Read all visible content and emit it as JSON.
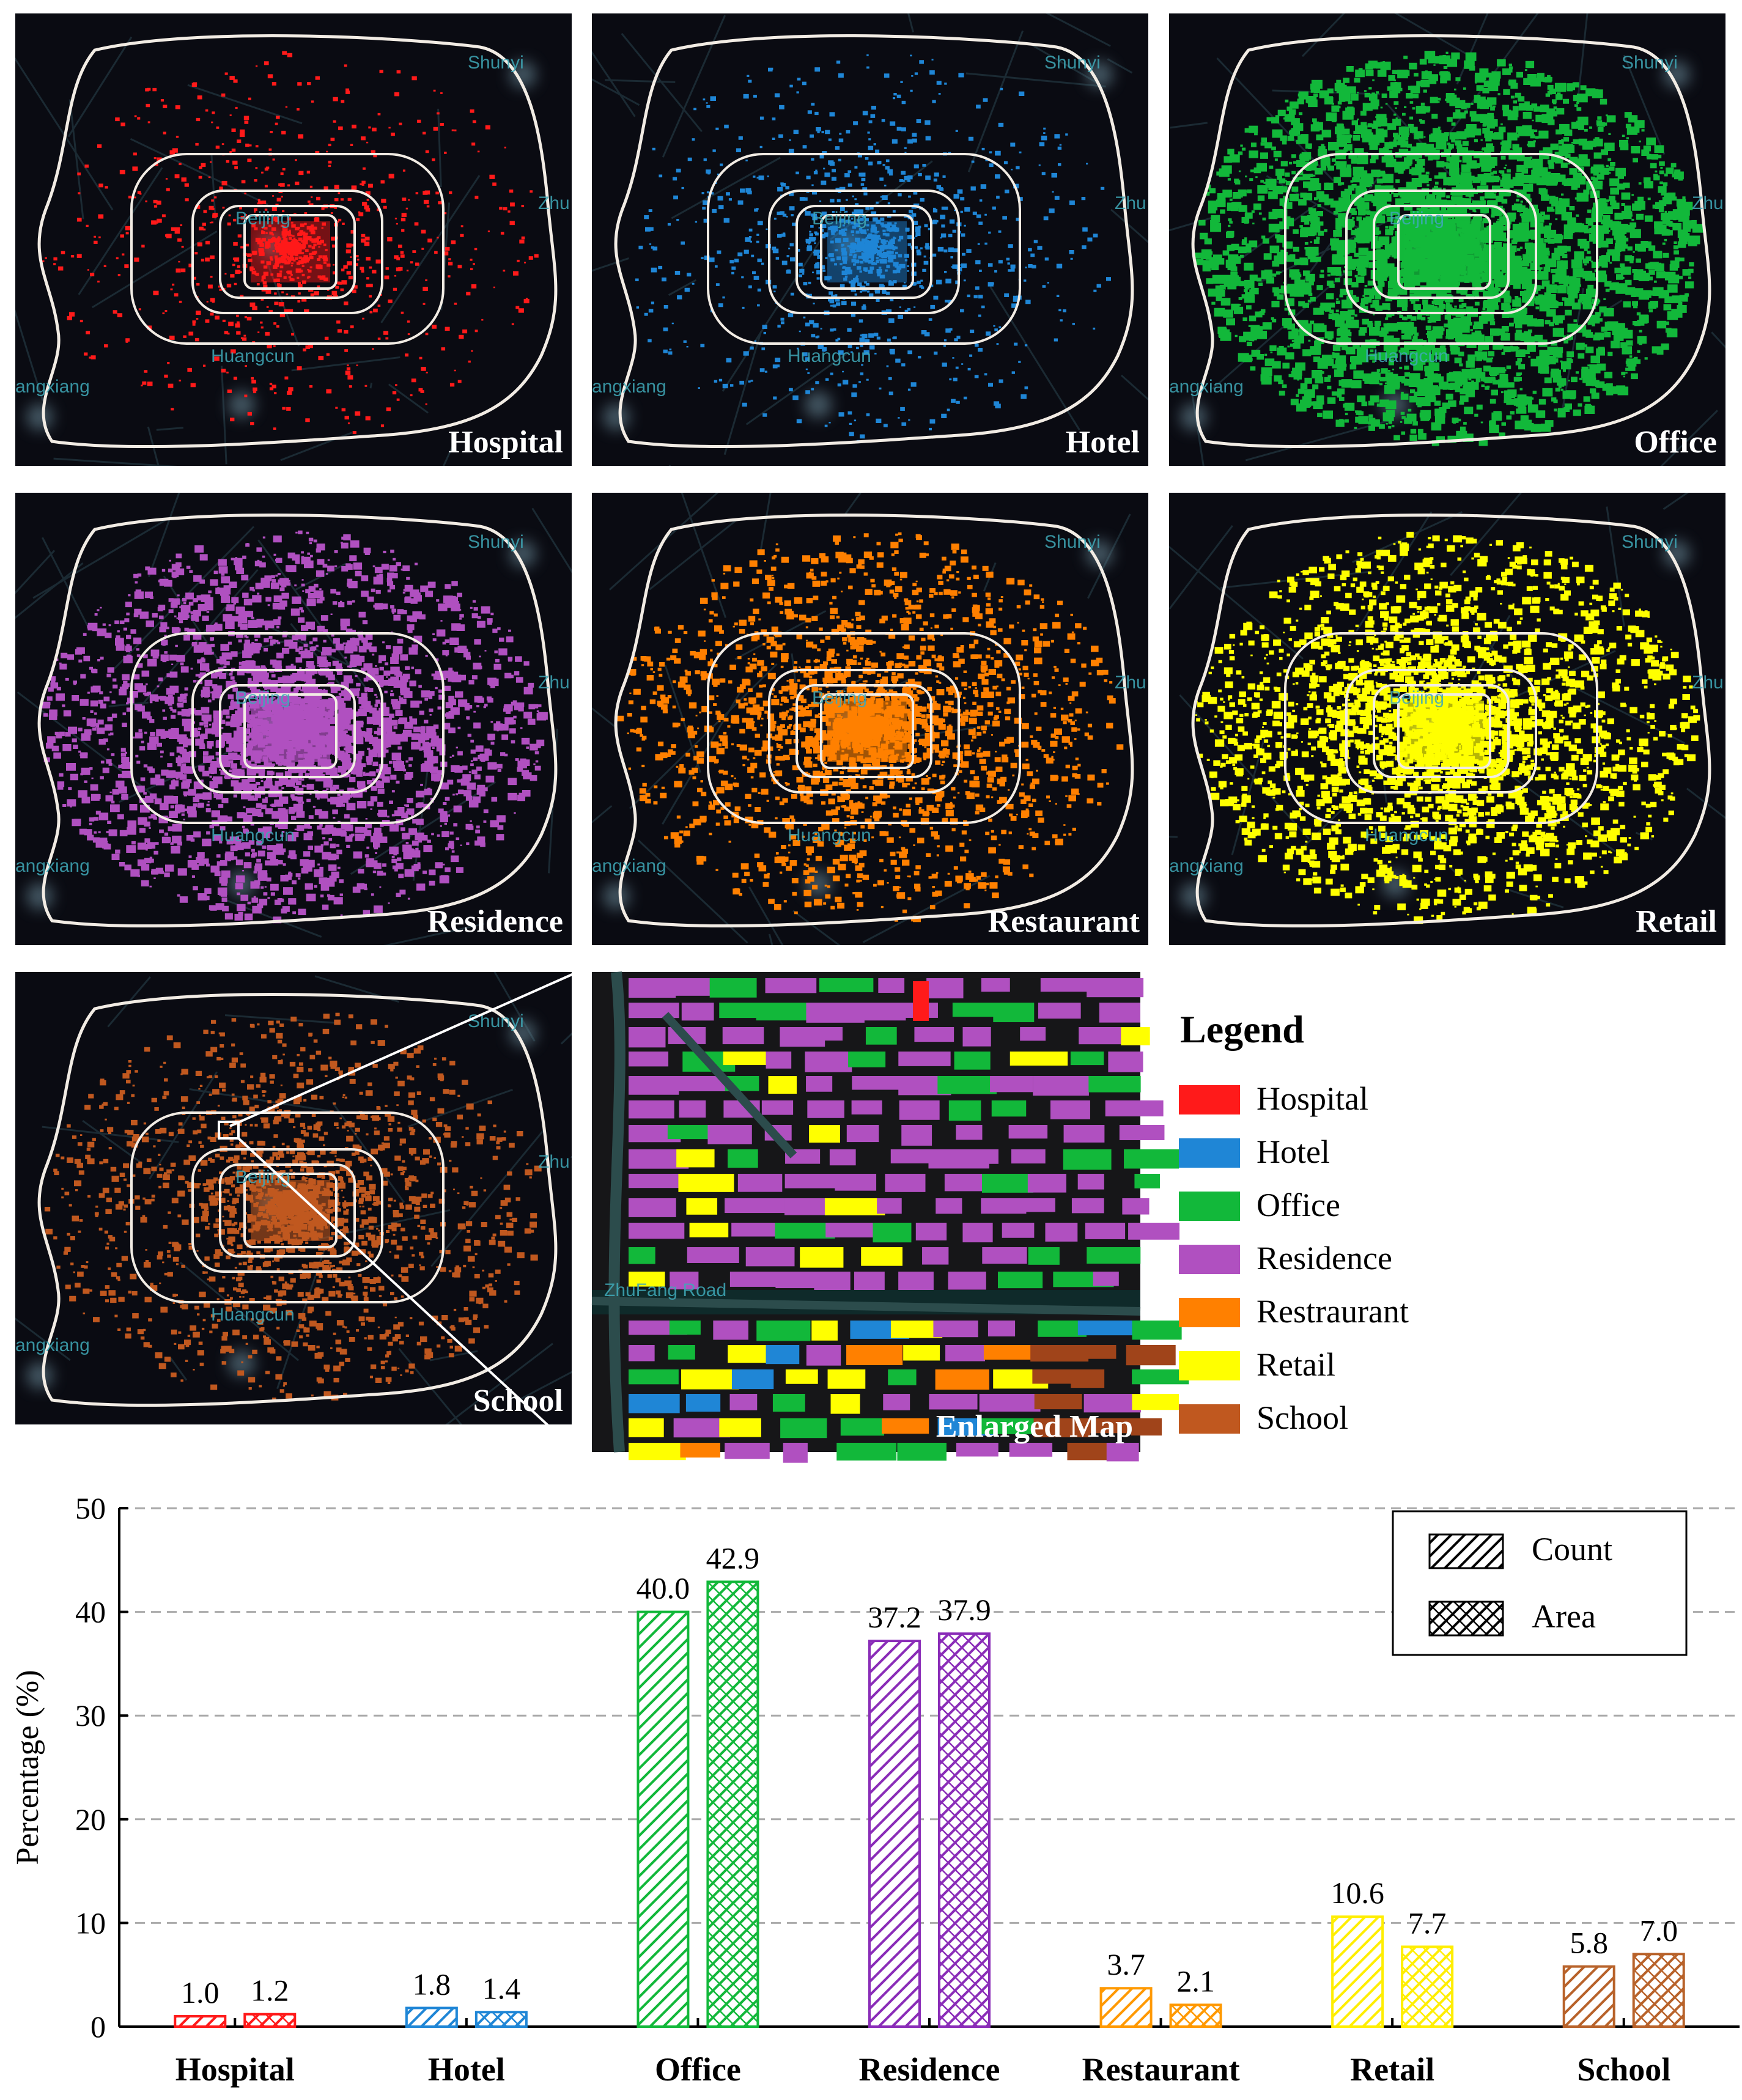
{
  "maps": {
    "places": [
      "Shunyi",
      "Beijing",
      "Zhu",
      "Huangcun",
      "angxiang"
    ],
    "panels": [
      {
        "label": "Hospital",
        "color": "#ff1a1a",
        "density": 0.18
      },
      {
        "label": "Hotel",
        "color": "#1f86d6",
        "density": 0.22
      },
      {
        "label": "Office",
        "color": "#12b83a",
        "density": 0.95
      },
      {
        "label": "Residence",
        "color": "#b050c0",
        "density": 0.75
      },
      {
        "label": "Restaurant",
        "color": "#ff8000",
        "density": 0.55
      },
      {
        "label": "Retail",
        "color": "#ffff00",
        "density": 0.7
      },
      {
        "label": "School",
        "color": "#c0581f",
        "density": 0.45
      }
    ],
    "enlarged_label": "Enlarged Map",
    "enlarged_road": "ZhuFang Road"
  },
  "legend": {
    "title": "Legend",
    "items": [
      {
        "label": "Hospital",
        "color": "#ff1a1a"
      },
      {
        "label": "Hotel",
        "color": "#1f86d6"
      },
      {
        "label": "Office",
        "color": "#12b83a"
      },
      {
        "label": "Residence",
        "color": "#b050c0"
      },
      {
        "label": "Restraurant",
        "color": "#ff8000"
      },
      {
        "label": "Retail",
        "color": "#ffff00"
      },
      {
        "label": "School",
        "color": "#c0581f"
      }
    ]
  },
  "chart_data": {
    "type": "bar",
    "categories": [
      "Hospital",
      "Hotel",
      "Office",
      "Residence",
      "Restaurant",
      "Retail",
      "School"
    ],
    "colors": [
      "#ff1a1a",
      "#1f86d6",
      "#12b83a",
      "#8a2cb8",
      "#ff9900",
      "#ffee00",
      "#b8622a"
    ],
    "series": [
      {
        "name": "Count",
        "hatch": "diagonal",
        "values": [
          1.0,
          1.8,
          40.0,
          37.2,
          3.7,
          10.6,
          5.8
        ]
      },
      {
        "name": "Area",
        "hatch": "crosshatch",
        "values": [
          1.2,
          1.4,
          42.9,
          37.9,
          2.1,
          7.7,
          7.0
        ]
      }
    ],
    "ylabel": "Percentage (%)",
    "ylim": [
      0,
      50
    ],
    "yticks": [
      0,
      10,
      20,
      30,
      40,
      50
    ],
    "grid": true,
    "legend_position": "top-right"
  }
}
